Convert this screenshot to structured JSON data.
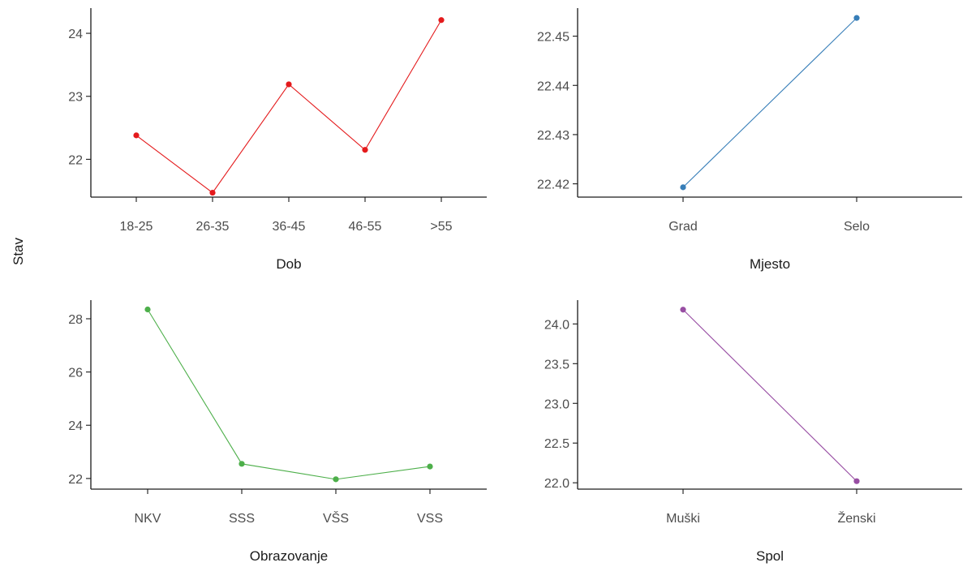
{
  "figure": {
    "shared_ylabel": "Stav"
  },
  "chart_data": [
    {
      "type": "line",
      "xlabel": "Dob",
      "ylabel": "",
      "categories": [
        "18-25",
        "26-35",
        "36-45",
        "46-55",
        ">55"
      ],
      "series": [
        {
          "values": [
            22.38,
            21.47,
            23.19,
            22.15,
            24.21
          ]
        }
      ],
      "ylim": [
        21.4,
        24.4
      ],
      "yticks": [
        22,
        23,
        24
      ],
      "ytick_labels": [
        "22",
        "23",
        "24"
      ],
      "color": "#e41a1c",
      "grid": false
    },
    {
      "type": "line",
      "xlabel": "Mjesto",
      "ylabel": "",
      "categories": [
        "Grad",
        "Selo"
      ],
      "series": [
        {
          "values": [
            22.4193,
            22.4537
          ]
        }
      ],
      "ylim": [
        22.4173,
        22.4557
      ],
      "yticks": [
        22.42,
        22.43,
        22.44,
        22.45
      ],
      "ytick_labels": [
        "22.42",
        "22.43",
        "22.44",
        "22.45"
      ],
      "color": "#377eb8",
      "grid": false
    },
    {
      "type": "line",
      "xlabel": "Obrazovanje",
      "ylabel": "",
      "categories": [
        "NKV",
        "SSS",
        "VŠS",
        "VSS"
      ],
      "series": [
        {
          "values": [
            28.35,
            22.55,
            21.97,
            22.45
          ]
        }
      ],
      "ylim": [
        21.6,
        28.7
      ],
      "yticks": [
        22,
        24,
        26,
        28
      ],
      "ytick_labels": [
        "22",
        "24",
        "26",
        "28"
      ],
      "color": "#4daf4a",
      "grid": false
    },
    {
      "type": "line",
      "xlabel": "Spol",
      "ylabel": "",
      "categories": [
        "Muški",
        "Ženski"
      ],
      "series": [
        {
          "values": [
            24.18,
            22.02
          ]
        }
      ],
      "ylim": [
        21.92,
        24.3
      ],
      "yticks": [
        22.0,
        22.5,
        23.0,
        23.5,
        24.0
      ],
      "ytick_labels": [
        "22.0",
        "22.5",
        "23.0",
        "23.5",
        "24.0"
      ],
      "color": "#984ea3",
      "grid": false
    }
  ]
}
